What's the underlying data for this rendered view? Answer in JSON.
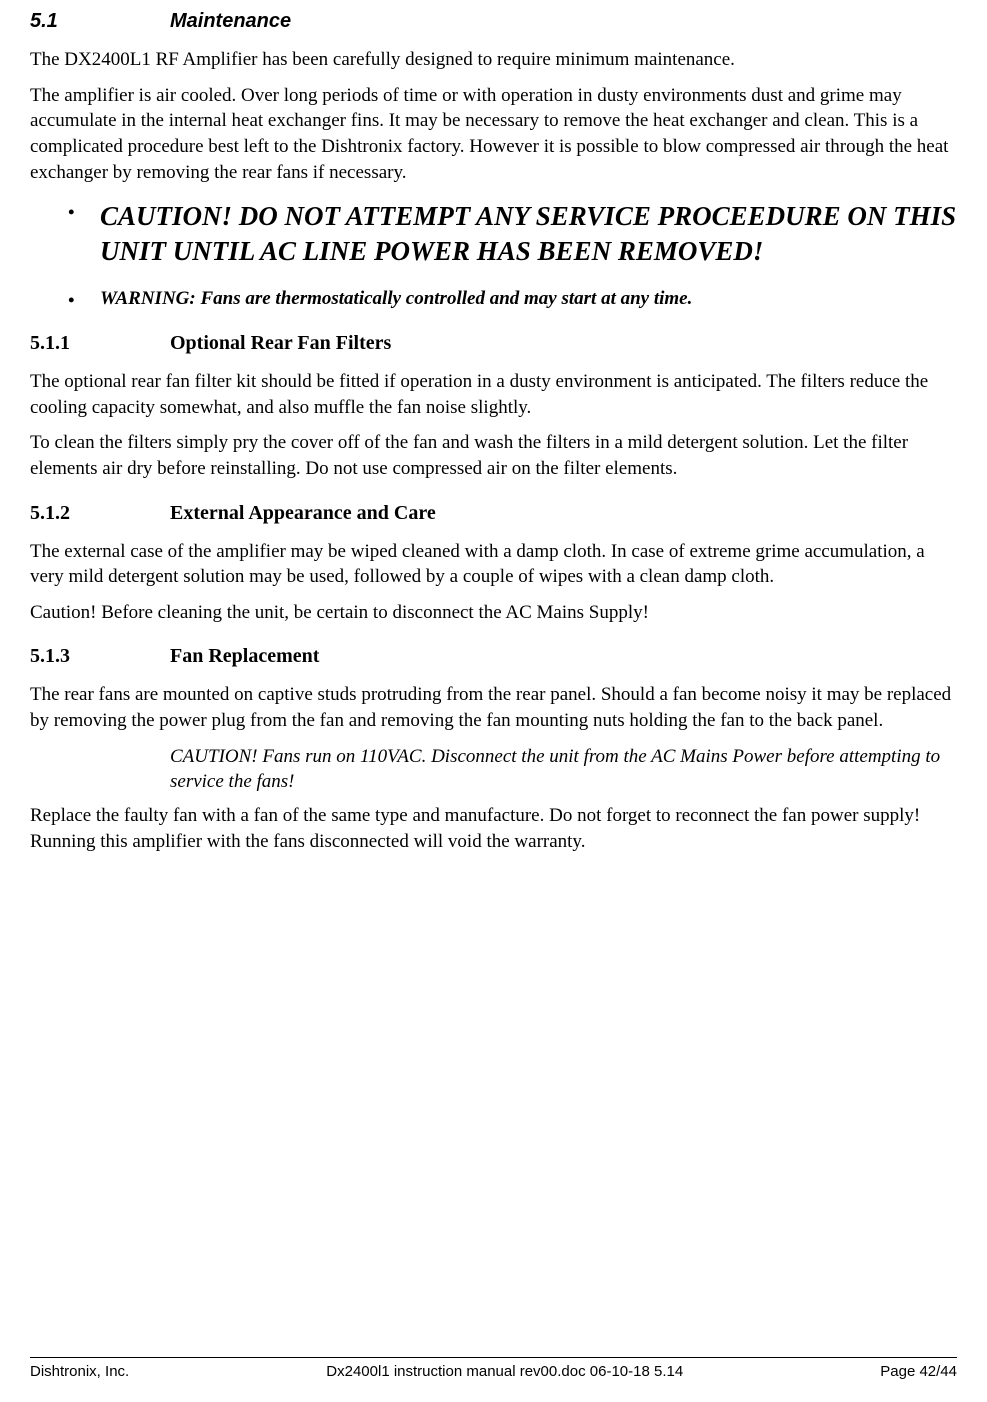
{
  "section": {
    "number": "5.1",
    "title": "Maintenance"
  },
  "para1": "The DX2400L1 RF Amplifier has been carefully designed to require minimum maintenance.",
  "para2": "The amplifier is air cooled. Over long periods of time or with operation in dusty environments dust and grime may accumulate in the internal heat exchanger fins. It may be necessary to remove the heat exchanger and clean.  This is a complicated procedure best left to the Dishtronix factory. However it is possible to blow compressed air through the heat exchanger by removing the rear fans if necessary.",
  "bullets": {
    "caution": "CAUTION!  DO NOT ATTEMPT ANY SERVICE PROCEEDURE ON THIS UNIT UNTIL AC LINE POWER HAS BEEN REMOVED!",
    "warning": "WARNING: Fans are thermostatically controlled and may start at any time."
  },
  "sub1": {
    "number": "5.1.1",
    "title": "Optional Rear Fan Filters",
    "p1": "The optional rear fan filter kit should be fitted if operation in a dusty environment is anticipated. The filters reduce the cooling capacity somewhat, and also muffle the fan noise slightly.",
    "p2": "To clean the filters simply pry the cover off of the fan and wash the filters in a mild detergent solution. Let the filter elements air dry before reinstalling. Do not use compressed air on the filter elements."
  },
  "sub2": {
    "number": "5.1.2",
    "title": "External Appearance and Care",
    "p1": "The external case of the amplifier may be wiped cleaned with a damp cloth. In case of extreme grime accumulation, a very mild detergent solution may be used, followed by a couple of wipes with a clean damp cloth.",
    "p2": "Caution! Before cleaning the unit, be certain to disconnect the AC Mains Supply!"
  },
  "sub3": {
    "number": "5.1.3",
    "title": "Fan Replacement",
    "p1": "The rear fans are mounted on captive studs protruding from the rear panel. Should a fan become noisy it may be replaced by removing the power plug from the fan and removing the fan mounting nuts holding the fan to the back panel.",
    "caution": "CAUTION! Fans run on 110VAC. Disconnect the unit from the AC Mains Power before attempting to service the fans!",
    "p2": "Replace the faulty fan with a fan of the same type and manufacture. Do not forget to reconnect the fan power supply!  Running this amplifier with the fans disconnected will void the warranty."
  },
  "footer": {
    "left": "Dishtronix, Inc.",
    "center": "Dx2400l1 instruction manual rev00.doc 06-10-18 5.14",
    "right": "Page 42/44"
  }
}
